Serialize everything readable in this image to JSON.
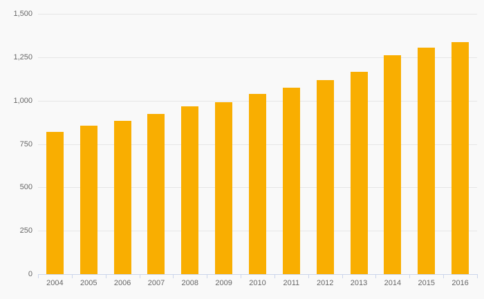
{
  "chart_data": {
    "type": "bar",
    "title": "",
    "xlabel": "",
    "ylabel": "",
    "categories": [
      "2004",
      "2005",
      "2006",
      "2007",
      "2008",
      "2009",
      "2010",
      "2011",
      "2012",
      "2013",
      "2014",
      "2015",
      "2016"
    ],
    "values": [
      820,
      855,
      885,
      925,
      965,
      990,
      1040,
      1075,
      1120,
      1165,
      1260,
      1305,
      1335
    ],
    "ylim": [
      0,
      1500
    ],
    "y_tick_step": 250,
    "y_tick_labels": [
      "0",
      "250",
      "500",
      "750",
      "1,000",
      "1,250",
      "1,500"
    ],
    "grid": "horizontal-on",
    "legend": "none",
    "colors": {
      "bar": "#F9AE01",
      "background": "#F9F9F9",
      "gridline": "#E6E6E6",
      "axis_line": "#CCD6EB",
      "tick": "#CCD6EB",
      "label_text": "#666666"
    }
  }
}
